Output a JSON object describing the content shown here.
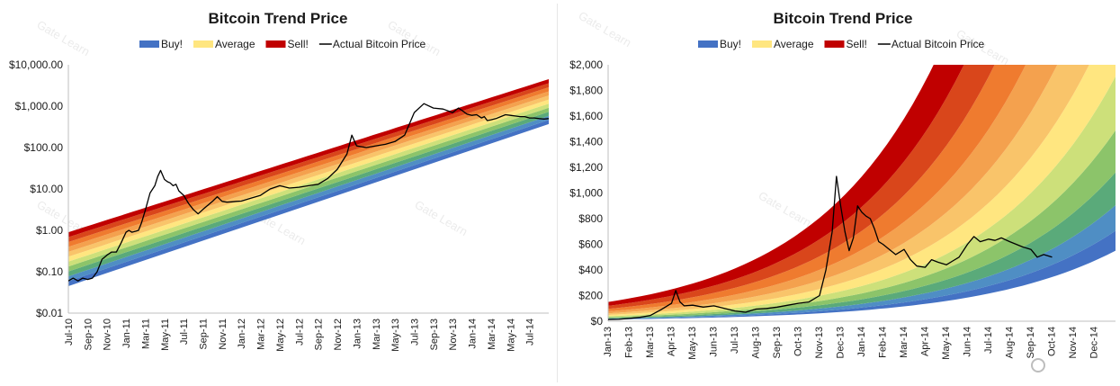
{
  "chart_data": [
    {
      "type": "area",
      "title": "Bitcoin Trend Price",
      "yscale": "log",
      "ylim": [
        0.01,
        10000
      ],
      "y_ticks": [
        0.01,
        0.1,
        1,
        10,
        100,
        1000,
        10000
      ],
      "y_tick_labels": [
        "$0.01",
        "$0.10",
        "$1.00",
        "$10.00",
        "$100.00",
        "$1,000.00",
        "$10,000.00"
      ],
      "x_tick_labels": [
        "Jul-10",
        "Sep-10",
        "Nov-10",
        "Jan-11",
        "Mar-11",
        "May-11",
        "Jul-11",
        "Sep-11",
        "Nov-11",
        "Jan-12",
        "Mar-12",
        "May-12",
        "Jul-12",
        "Sep-12",
        "Nov-12",
        "Jan-13",
        "Mar-13",
        "May-13",
        "Jul-13",
        "Sep-13",
        "Nov-13",
        "Jan-14",
        "Mar-14",
        "May-14",
        "Jul-14"
      ],
      "x_range_months": [
        0,
        50
      ],
      "legend": [
        {
          "label": "Buy!",
          "color": "#4472c4"
        },
        {
          "label": "Average",
          "color": "#ffe680"
        },
        {
          "label": "Sell!",
          "color": "#c00000"
        },
        {
          "label": "Actual Bitcoin Price",
          "color": "#000000"
        }
      ],
      "rainbow": {
        "start_month": 0,
        "end_month": 50,
        "low_start": 0.045,
        "low_end": 370,
        "high_start": 0.9,
        "high_end": 4500,
        "colors": [
          "#4472c4",
          "#4f8ec4",
          "#5aaa7a",
          "#8cc46a",
          "#cde07a",
          "#ffe680",
          "#f9c46a",
          "#f4a14e",
          "#ef7b2f",
          "#d9461b",
          "#c00000"
        ]
      },
      "series": [
        {
          "name": "Actual Bitcoin Price",
          "x": [
            0,
            0.5,
            1,
            1.5,
            2,
            2.5,
            3,
            3.5,
            4,
            4.5,
            5,
            5.5,
            6,
            6.3,
            6.6,
            7,
            7.3,
            7.6,
            8,
            8.5,
            9,
            9.3,
            9.6,
            10,
            10.3,
            10.6,
            10.9,
            11.2,
            11.5,
            12,
            12.5,
            13,
            13.5,
            14,
            14.5,
            15,
            15.5,
            16,
            16.5,
            17,
            17.5,
            18,
            19,
            20,
            21,
            22,
            23,
            24,
            25,
            26,
            27,
            28,
            29,
            29.5,
            30,
            31,
            32,
            33,
            34,
            35,
            36,
            37,
            38,
            39,
            40,
            40.3,
            40.6,
            41,
            41.5,
            42,
            42.5,
            43,
            43.3,
            43.6,
            44,
            44.5,
            45,
            45.5,
            46,
            46.5,
            47,
            47.5,
            48,
            48.5,
            49,
            49.5,
            50
          ],
          "y": [
            0.06,
            0.07,
            0.06,
            0.07,
            0.065,
            0.07,
            0.1,
            0.2,
            0.25,
            0.3,
            0.3,
            0.5,
            0.9,
            1.0,
            0.9,
            0.95,
            1.0,
            1.5,
            3,
            8,
            12,
            20,
            28,
            17,
            15,
            14,
            12,
            13,
            9,
            7,
            4.5,
            3.2,
            2.5,
            3.2,
            4,
            5,
            6.5,
            5,
            4.8,
            4.9,
            5,
            5.1,
            6,
            7,
            10,
            12,
            10.5,
            11,
            12,
            13,
            18,
            30,
            70,
            200,
            110,
            100,
            110,
            120,
            140,
            200,
            700,
            1150,
            900,
            850,
            700,
            800,
            900,
            780,
            640,
            600,
            620,
            520,
            560,
            450,
            470,
            500,
            560,
            620,
            600,
            580,
            560,
            560,
            520,
            520,
            500,
            490,
            500
          ]
        }
      ]
    },
    {
      "type": "area",
      "title": "Bitcoin Trend Price",
      "yscale": "linear",
      "ylim": [
        0,
        2000
      ],
      "y_ticks": [
        0,
        200,
        400,
        600,
        800,
        1000,
        1200,
        1400,
        1600,
        1800,
        2000
      ],
      "y_tick_labels": [
        "$0",
        "$200",
        "$400",
        "$600",
        "$800",
        "$1,000",
        "$1,200",
        "$1,400",
        "$1,600",
        "$1,800",
        "$2,000"
      ],
      "x_tick_labels": [
        "Jan-13",
        "Feb-13",
        "Mar-13",
        "Apr-13",
        "May-13",
        "Jun-13",
        "Jul-13",
        "Aug-13",
        "Sep-13",
        "Oct-13",
        "Nov-13",
        "Dec-13",
        "Jan-14",
        "Feb-14",
        "Mar-14",
        "Apr-14",
        "May-14",
        "Jun-14",
        "Jul-14",
        "Aug-14",
        "Sep-14",
        "Oct-14",
        "Nov-14",
        "Dec-14"
      ],
      "x_range_months": [
        0,
        24
      ],
      "legend": [
        {
          "label": "Buy!",
          "color": "#4472c4"
        },
        {
          "label": "Average",
          "color": "#ffe680"
        },
        {
          "label": "Sell!",
          "color": "#c00000"
        },
        {
          "label": "Actual Bitcoin Price",
          "color": "#000000"
        }
      ],
      "rainbow": {
        "start_month": 0,
        "end_month": 24,
        "low_start": 13,
        "low_end": 550,
        "high_start": 150,
        "high_end": 8500,
        "colors": [
          "#4472c4",
          "#4f8ec4",
          "#5aaa7a",
          "#8cc46a",
          "#cde07a",
          "#ffe680",
          "#f9c46a",
          "#f4a14e",
          "#ef7b2f",
          "#d9461b",
          "#c00000"
        ]
      },
      "series": [
        {
          "name": "Actual Bitcoin Price",
          "x": [
            0,
            0.5,
            1,
            1.5,
            2,
            2.5,
            3,
            3.2,
            3.4,
            3.6,
            4,
            4.5,
            5,
            5.5,
            6,
            6.5,
            7,
            7.5,
            8,
            8.5,
            9,
            9.5,
            10,
            10.3,
            10.6,
            10.8,
            11,
            11.2,
            11.4,
            11.6,
            11.8,
            12,
            12.2,
            12.4,
            12.6,
            12.8,
            13,
            13.3,
            13.6,
            14,
            14.3,
            14.6,
            15,
            15.3,
            15.6,
            16,
            16.3,
            16.6,
            17,
            17.3,
            17.6,
            18,
            18.3,
            18.6,
            19,
            19.3,
            19.6,
            20,
            20.3,
            20.6,
            21
          ],
          "y": [
            13,
            15,
            22,
            30,
            45,
            90,
            140,
            240,
            150,
            120,
            125,
            110,
            120,
            100,
            80,
            70,
            95,
            100,
            110,
            125,
            140,
            150,
            200,
            400,
            700,
            1130,
            900,
            700,
            550,
            650,
            900,
            850,
            820,
            800,
            720,
            620,
            600,
            560,
            520,
            560,
            480,
            430,
            420,
            480,
            460,
            440,
            470,
            500,
            600,
            660,
            620,
            640,
            630,
            650,
            620,
            600,
            580,
            560,
            500,
            520,
            500
          ]
        }
      ]
    }
  ]
}
